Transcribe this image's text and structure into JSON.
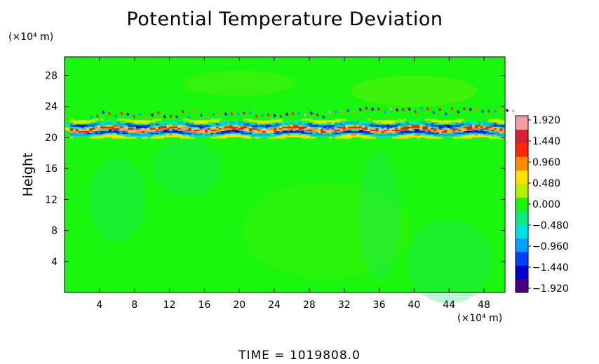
{
  "chart_data": {
    "type": "heatmap",
    "title": "Potential Temperature Deviation",
    "xlabel": "",
    "ylabel": "Height",
    "x_unit": "(×10⁴ m)",
    "y_unit": "(×10⁴ m)",
    "x_ticks": [
      4,
      8,
      12,
      16,
      20,
      24,
      28,
      32,
      36,
      40,
      44,
      48
    ],
    "y_ticks": [
      4,
      8,
      12,
      16,
      20,
      24,
      28
    ],
    "xlim": [
      0,
      50.4
    ],
    "ylim": [
      0,
      30.4
    ],
    "colorbar": {
      "ticks": [
        "1.920",
        "1.440",
        "0.960",
        "0.480",
        "0.000",
        "−0.480",
        "−0.960",
        "−1.440",
        "−1.920"
      ],
      "range": [
        -1.92,
        1.92
      ]
    },
    "field_description_values": {
      "background": 0.0,
      "oscillating_band_height_range": [
        19.5,
        23.0
      ],
      "band_amplitude": 1.92
    }
  },
  "footer": {
    "time_label": "TIME  =  1019808.0"
  },
  "colors": {
    "plot_background": "#19f50f",
    "colorbar": [
      "#4b0082",
      "#0000c8",
      "#0040ff",
      "#00a0ff",
      "#00e0e0",
      "#10e880",
      "#19f50f",
      "#b4f000",
      "#ffe000",
      "#ff8c00",
      "#ff2800",
      "#dc1e32",
      "#f0a0a0"
    ]
  }
}
